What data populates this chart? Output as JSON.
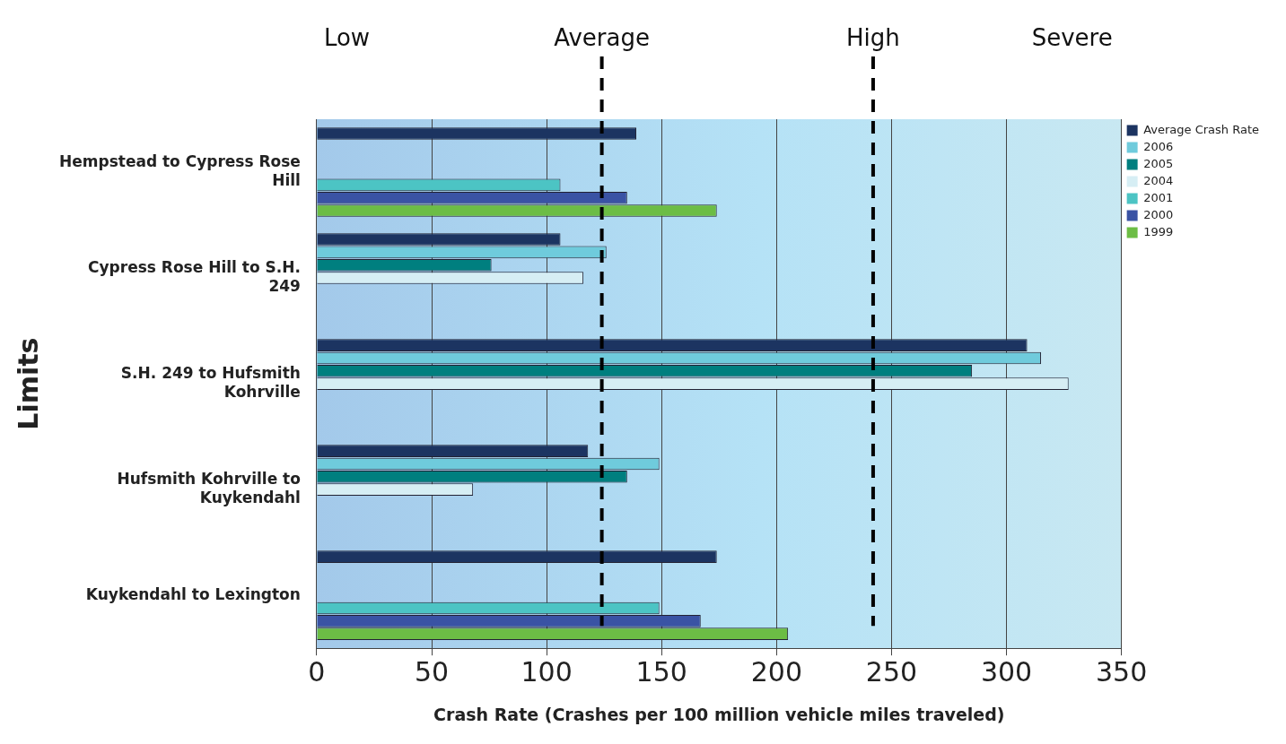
{
  "chart_data": {
    "type": "bar",
    "orientation": "horizontal",
    "ylabel": "Limits",
    "xlabel": "Crash Rate (Crashes per 100 million vehicle miles traveled)",
    "categories": [
      "Hempstead to Cypress Rose Hill",
      "Cypress Rose Hill to S.H. 249",
      "S.H. 249 to Hufsmith Kohrville",
      "Hufsmith Kohrville to Kuykendahl",
      "Kuykendahl to Lexington"
    ],
    "series": [
      {
        "name": "Average Crash Rate",
        "color": "#1c3461",
        "values": [
          139,
          106,
          309,
          118,
          174
        ]
      },
      {
        "name": "2006",
        "color": "#6fcbdc",
        "values": [
          null,
          126,
          315,
          149,
          null
        ]
      },
      {
        "name": "2005",
        "color": "#007f7f",
        "values": [
          null,
          76,
          285,
          135,
          null
        ]
      },
      {
        "name": "2004",
        "color": "#d6eef4",
        "values": [
          null,
          116,
          327,
          68,
          null
        ]
      },
      {
        "name": "2001",
        "color": "#4cc4c4",
        "values": [
          106,
          null,
          null,
          null,
          149
        ]
      },
      {
        "name": "2000",
        "color": "#3a53a4",
        "values": [
          135,
          null,
          null,
          null,
          167
        ]
      },
      {
        "name": "1999",
        "color": "#6cbd45",
        "values": [
          174,
          null,
          null,
          null,
          205
        ]
      }
    ],
    "xlim": [
      0,
      350
    ],
    "xticks": [
      0,
      50,
      100,
      150,
      200,
      250,
      300,
      350
    ],
    "grid": "x",
    "legend": "right",
    "ref_lines": [
      {
        "axis": "x",
        "value": 124,
        "label": "Average",
        "line_style": "dashed"
      },
      {
        "axis": "x",
        "value": 242,
        "label": "High",
        "line_style": "dashed"
      }
    ],
    "annotations": [
      "Low",
      "Severe"
    ]
  }
}
